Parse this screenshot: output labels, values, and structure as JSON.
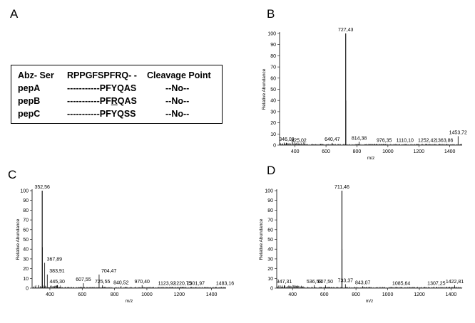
{
  "panel_labels": {
    "a": "A",
    "b": "B",
    "c": "C",
    "d": "D"
  },
  "table": {
    "header": [
      "Abz- Ser",
      "RPPGFSPFRQ- -",
      "Cleavage Point"
    ],
    "rows": [
      {
        "name": "pepA",
        "seq_pre": "-----------PFYQAS",
        "seq_ul": "",
        "seq_post": "",
        "cleavage": "--No--"
      },
      {
        "name": "pepB",
        "seq_pre": "-----------PF",
        "seq_ul": "R",
        "seq_post": "QAS",
        "cleavage": "--No--"
      },
      {
        "name": "pepC",
        "seq_pre": "-----------PFYQSS",
        "seq_ul": "",
        "seq_post": "",
        "cleavage": "--No--"
      }
    ]
  },
  "chart_data": [
    {
      "panel": "B",
      "type": "bar",
      "xlabel": "m/z",
      "ylabel": "Relative Abundance",
      "xlim": [
        300,
        1480
      ],
      "ylim": [
        0,
        100
      ],
      "xticks": [
        400,
        600,
        800,
        1000,
        1200,
        1400
      ],
      "yticks": [
        0,
        10,
        20,
        30,
        40,
        50,
        60,
        70,
        80,
        90,
        100
      ],
      "peaks": [
        {
          "mz": 727.43,
          "intensity": 100,
          "label": "727,43"
        },
        {
          "mz": 728.4,
          "intensity": 40
        },
        {
          "mz": 346.09,
          "intensity": 2,
          "label": "346,09"
        },
        {
          "mz": 425.02,
          "intensity": 1,
          "label": "425,02"
        },
        {
          "mz": 640.47,
          "intensity": 2,
          "label": "640,47"
        },
        {
          "mz": 814.38,
          "intensity": 3,
          "label": "814,38"
        },
        {
          "mz": 976.35,
          "intensity": 1,
          "label": "976,35"
        },
        {
          "mz": 1110.1,
          "intensity": 1,
          "label": "1110,10"
        },
        {
          "mz": 1252.42,
          "intensity": 1,
          "label": "1252,42"
        },
        {
          "mz": 1363.86,
          "intensity": 1,
          "label": "1363,86"
        },
        {
          "mz": 1453.72,
          "intensity": 8,
          "label": "1453,72"
        }
      ]
    },
    {
      "panel": "C",
      "type": "bar",
      "xlabel": "m/z",
      "ylabel": "Relative Abundance",
      "xlim": [
        290,
        1490
      ],
      "ylim": [
        0,
        100
      ],
      "xticks": [
        400,
        600,
        800,
        1000,
        1200,
        1400
      ],
      "yticks": [
        0,
        10,
        20,
        30,
        40,
        50,
        60,
        70,
        80,
        90,
        100
      ],
      "peaks": [
        {
          "mz": 352.56,
          "intensity": 100,
          "label": "352,56"
        },
        {
          "mz": 353.5,
          "intensity": 42
        },
        {
          "mz": 367.89,
          "intensity": 26,
          "label": "367,89"
        },
        {
          "mz": 383.91,
          "intensity": 14,
          "label": "383,91"
        },
        {
          "mz": 445.3,
          "intensity": 3,
          "label": "445,30"
        },
        {
          "mz": 607.55,
          "intensity": 5,
          "label": "607,55"
        },
        {
          "mz": 704.47,
          "intensity": 14,
          "label": "704,47"
        },
        {
          "mz": 725.55,
          "intensity": 3,
          "label": "725,55"
        },
        {
          "mz": 840.52,
          "intensity": 2,
          "label": "840,52"
        },
        {
          "mz": 970.4,
          "intensity": 3,
          "label": "970,40"
        },
        {
          "mz": 1123.92,
          "intensity": 1,
          "label": "1123,92"
        },
        {
          "mz": 1220.75,
          "intensity": 1,
          "label": "1220,75"
        },
        {
          "mz": 1301.97,
          "intensity": 1,
          "label": "1301,97"
        },
        {
          "mz": 1483.16,
          "intensity": 1,
          "label": "1483,16"
        }
      ]
    },
    {
      "panel": "D",
      "type": "bar",
      "xlabel": "m/z",
      "ylabel": "Relative Abundance",
      "xlim": [
        300,
        1470
      ],
      "ylim": [
        0,
        100
      ],
      "xticks": [
        400,
        600,
        800,
        1000,
        1200,
        1400
      ],
      "yticks": [
        0,
        10,
        20,
        30,
        40,
        50,
        60,
        70,
        80,
        90,
        100
      ],
      "peaks": [
        {
          "mz": 711.46,
          "intensity": 100,
          "label": "711,46"
        },
        {
          "mz": 712.4,
          "intensity": 40
        },
        {
          "mz": 347.31,
          "intensity": 3,
          "label": "347,31"
        },
        {
          "mz": 536.53,
          "intensity": 3,
          "label": "536,53"
        },
        {
          "mz": 607.5,
          "intensity": 3,
          "label": "607,50"
        },
        {
          "mz": 733.37,
          "intensity": 4,
          "label": "733,37"
        },
        {
          "mz": 843.07,
          "intensity": 2,
          "label": "843,07"
        },
        {
          "mz": 1085.64,
          "intensity": 1,
          "label": "1085,64"
        },
        {
          "mz": 1307.25,
          "intensity": 1,
          "label": "1307,25"
        },
        {
          "mz": 1422.81,
          "intensity": 3,
          "label": "1422,81"
        }
      ]
    }
  ]
}
